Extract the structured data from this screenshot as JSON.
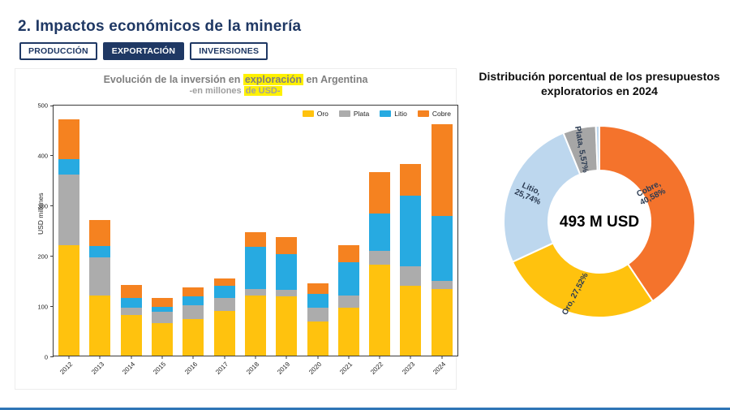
{
  "page": {
    "title": "2. Impactos económicos de la minería",
    "tabs": [
      {
        "id": "produccion",
        "label": "PRODUCCIÓN",
        "active": false
      },
      {
        "id": "exportacion",
        "label": "EXPORTACIÓN",
        "active": true
      },
      {
        "id": "inversiones",
        "label": "INVERSIONES",
        "active": false
      }
    ]
  },
  "colors": {
    "navy": "#1f3864",
    "highlight": "#fff100",
    "oro": "#ffc20e",
    "plata": "#acacac",
    "litio": "#27aae1",
    "cobre": "#f58220",
    "donut_litio": "#bdd7ee",
    "donut_plata": "#a6a6a6",
    "donut_cobre": "#f4732c",
    "bottom_rule": "#2e75b6"
  },
  "chart_data": [
    {
      "type": "bar",
      "stacked": true,
      "title_parts": [
        {
          "text": "Evolución de la inversión en ",
          "hl": false
        },
        {
          "text": "exploración",
          "hl": true
        },
        {
          "text": " en Argentina",
          "hl": false
        }
      ],
      "subtitle_parts": [
        {
          "text": "-en millones ",
          "hl": false
        },
        {
          "text": "de USD-",
          "hl": true
        }
      ],
      "xlabel": "",
      "ylabel": "USD millones",
      "ylim": [
        0,
        500
      ],
      "yticks": [
        0,
        100,
        200,
        300,
        400,
        500
      ],
      "grid": false,
      "legend_position": "top-right",
      "categories": [
        "2012",
        "2013",
        "2014",
        "2015",
        "2016",
        "2017",
        "2018",
        "2019",
        "2020",
        "2021",
        "2022",
        "2023",
        "2024"
      ],
      "series": [
        {
          "name": "Oro",
          "color": "#ffc20e",
          "values": [
            220,
            120,
            80,
            65,
            72,
            88,
            120,
            117,
            68,
            95,
            180,
            138,
            133
          ]
        },
        {
          "name": "Plata",
          "color": "#acacac",
          "values": [
            140,
            75,
            15,
            22,
            28,
            27,
            13,
            13,
            27,
            25,
            28,
            40,
            15
          ]
        },
        {
          "name": "Litio",
          "color": "#27aae1",
          "values": [
            30,
            22,
            20,
            10,
            18,
            23,
            83,
            72,
            27,
            65,
            74,
            140,
            130
          ]
        },
        {
          "name": "Cobre",
          "color": "#f58220",
          "values": [
            80,
            53,
            25,
            18,
            17,
            15,
            29,
            33,
            21,
            35,
            83,
            62,
            182
          ]
        }
      ]
    },
    {
      "type": "pie",
      "donut": true,
      "title": "Distribución porcentual de los presupuestos exploratorios en 2024",
      "center_label": "493 M USD",
      "slices": [
        {
          "name": "Cobre",
          "pct": 40.58,
          "color": "#f4732c",
          "label_lines": [
            "Cobre,",
            "40,58%"
          ]
        },
        {
          "name": "Oro",
          "pct": 27.52,
          "color": "#ffc20e",
          "label_lines": [
            "Oro, 27,52%"
          ]
        },
        {
          "name": "Litio",
          "pct": 25.74,
          "color": "#bdd7ee",
          "label_lines": [
            "Litio,",
            "25,74%"
          ]
        },
        {
          "name": "Plata",
          "pct": 5.57,
          "color": "#a6a6a6",
          "label_lines": [
            "Plata, 5,57%"
          ]
        },
        {
          "name": "",
          "pct": 0.59,
          "color": "#bdd7ee",
          "label_lines": []
        }
      ]
    }
  ]
}
